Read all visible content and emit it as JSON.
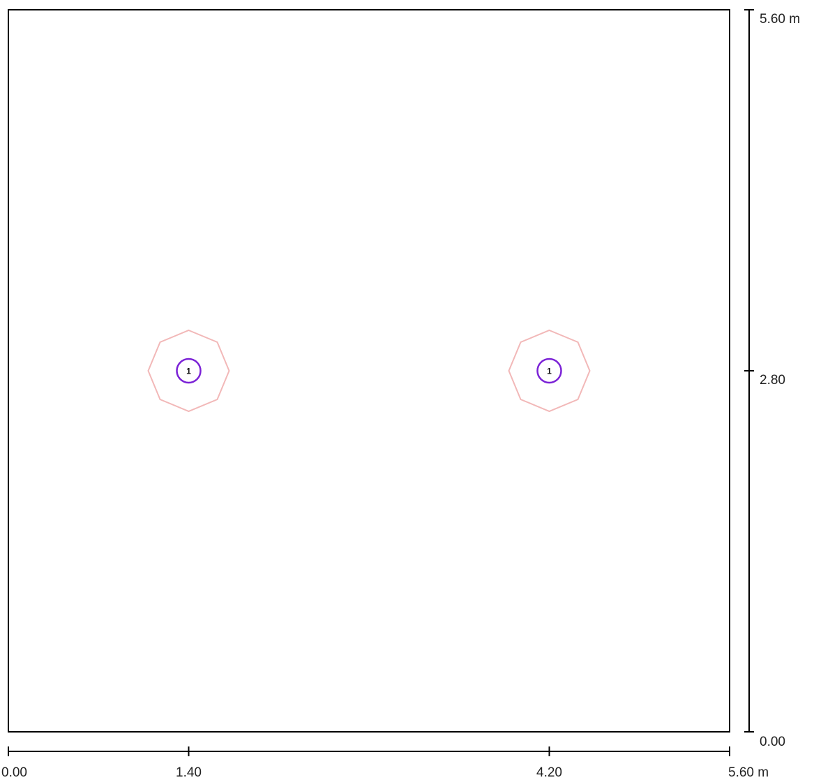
{
  "plan": {
    "width_m": 5.6,
    "height_m": 5.6,
    "unit": "m",
    "outline_color": "#000000",
    "x_axis": {
      "ticks": [
        {
          "value": 0.0,
          "label": "0.00"
        },
        {
          "value": 1.4,
          "label": "1.40"
        },
        {
          "value": 4.2,
          "label": "4.20"
        },
        {
          "value": 5.6,
          "label": "5.60 m"
        }
      ]
    },
    "y_axis": {
      "ticks": [
        {
          "value": 0.0,
          "label": "0.00"
        },
        {
          "value": 2.8,
          "label": "2.80"
        },
        {
          "value": 5.6,
          "label": "5.60 m"
        }
      ]
    },
    "luminaires": [
      {
        "x": 1.4,
        "y": 2.8,
        "label": "1"
      },
      {
        "x": 4.2,
        "y": 2.8,
        "label": "1"
      }
    ],
    "luminaire_outline_color": "#f2b8b8",
    "marker_color": "#7b22d6"
  }
}
